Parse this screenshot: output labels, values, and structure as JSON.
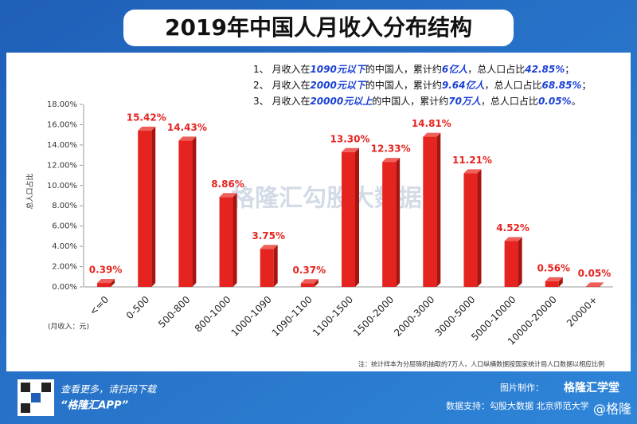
{
  "title": "2019年中国人月收入分布结构",
  "notes": [
    [
      "1、 月收入在",
      "1090元以下",
      "的中国人，累计约",
      "6亿人",
      "，总人口占比",
      "42.85%",
      "；"
    ],
    [
      "2、 月收入在",
      "2000元以下",
      "的中国人，累计约",
      "9.64亿人",
      "，总人口占比",
      "68.85%",
      "；"
    ],
    [
      "3、 月收入在",
      "20000元以上",
      "的中国人，累计约",
      "70万人",
      "，总人口占比",
      "0.05%",
      "。"
    ]
  ],
  "chart_data": {
    "type": "bar",
    "y_label": "总人口占比",
    "x_label": "(月收入：元)",
    "categories": [
      "<=0",
      "0-500",
      "500-800",
      "800-1000",
      "1000-1090",
      "1090-1100",
      "1100-1500",
      "1500-2000",
      "2000-3000",
      "3000-5000",
      "5000-10000",
      "10000-20000",
      "20000+"
    ],
    "values": [
      0.39,
      15.42,
      14.43,
      8.86,
      3.75,
      0.37,
      13.3,
      12.33,
      14.81,
      11.21,
      4.52,
      0.56,
      0.05
    ],
    "value_labels": [
      "0.39%",
      "15.42%",
      "14.43%",
      "8.86%",
      "3.75%",
      "0.37%",
      "13.30%",
      "12.33%",
      "14.81%",
      "11.21%",
      "4.52%",
      "0.56%",
      "0.05%"
    ],
    "color": "#e52420",
    "ylim": [
      0,
      18
    ],
    "yticks": [
      {
        "value": 0,
        "label": "0.00%"
      },
      {
        "value": 2,
        "label": "2.00%"
      },
      {
        "value": 4,
        "label": "4.00%"
      },
      {
        "value": 6,
        "label": "6.00%"
      },
      {
        "value": 8,
        "label": "8.00%"
      },
      {
        "value": 10,
        "label": "10.00%"
      },
      {
        "value": 12,
        "label": "12.00%"
      },
      {
        "value": 14,
        "label": "14.00%"
      },
      {
        "value": 16,
        "label": "16.00%"
      },
      {
        "value": 18,
        "label": "18.00%"
      }
    ]
  },
  "footnote": "注：统计样本为分层随机抽取的7万人，人口纵横数据按国家统计局人口数据以相应比例",
  "watermark": [
    "格隆汇",
    "勾股大数据"
  ],
  "footer": {
    "scan": "查看更多，请扫码下载",
    "app": "“格隆汇APP”",
    "made_by_label": "图片制作：",
    "made_by": "格隆汇学堂",
    "source": "数据支持：勾股大数据  北京师范大学",
    "handle": "@格隆"
  }
}
